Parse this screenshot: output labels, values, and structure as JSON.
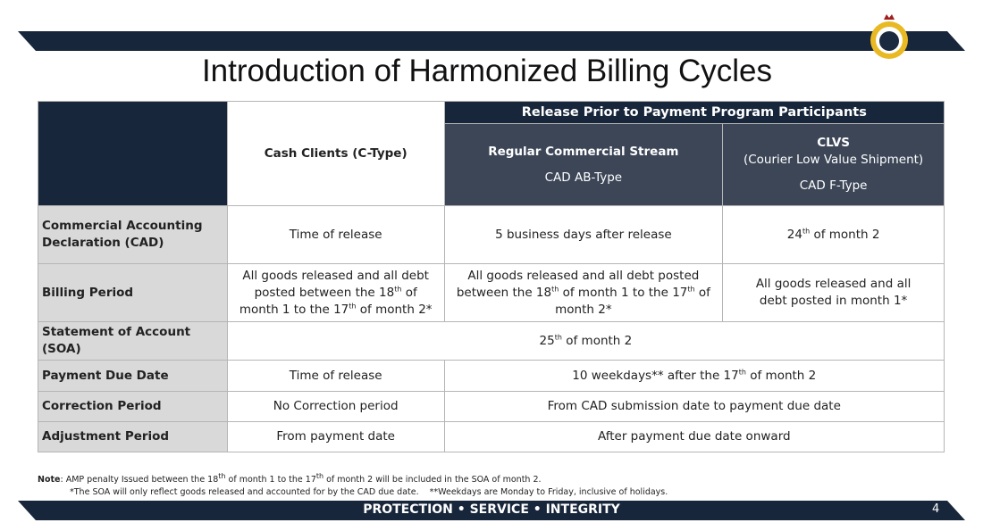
{
  "header": {
    "title": "Introduction of Harmonized Billing Cycles"
  },
  "table": {
    "group_header": "Release Prior to Payment Program Participants",
    "columns": [
      [
        "Cash Clients (C-Type)"
      ],
      [
        "Regular Commercial Stream",
        "CAD AB-Type"
      ],
      [
        "CLVS",
        "(Courier Low Value Shipment)",
        "CAD F-Type"
      ]
    ],
    "rows": [
      {
        "label": "Commercial Accounting Declaration (CAD)",
        "cells": [
          {
            "text": [
              "Time of release"
            ]
          },
          {
            "text": [
              "5 business days after release"
            ]
          },
          {
            "text": [
              "24",
              "th",
              " of month 2"
            ]
          }
        ]
      },
      {
        "label": "Billing Period",
        "cells": [
          {
            "text": [
              "All goods released and all debt posted between the 18",
              "th",
              " of month 1 to the 17",
              "th",
              " of month 2*"
            ]
          },
          {
            "text": [
              "All goods released and all debt posted between the 18",
              "th",
              " of month 1 to the 17",
              "th",
              " of month 2*"
            ]
          },
          {
            "text": [
              "All goods released and all debt posted in month 1*"
            ]
          }
        ]
      },
      {
        "label": "Statement of Account (SOA)",
        "cells": [
          {
            "text": [
              "25",
              "th",
              " of month 2"
            ],
            "span": 3
          }
        ]
      },
      {
        "label": "Payment Due Date",
        "cells": [
          {
            "text": [
              "Time of release"
            ]
          },
          {
            "text": [
              "10 weekdays** after the 17",
              "th",
              " of month 2"
            ],
            "span": 2
          }
        ]
      },
      {
        "label": "Correction Period",
        "cells": [
          {
            "text": [
              "No Correction period"
            ]
          },
          {
            "text": [
              "From CAD submission date to payment due date"
            ],
            "span": 2
          }
        ]
      },
      {
        "label": "Adjustment Period",
        "cells": [
          {
            "text": [
              "From payment date"
            ]
          },
          {
            "text": [
              "After payment due date onward"
            ],
            "span": 2
          }
        ]
      }
    ]
  },
  "notes": {
    "label": "Note",
    "text": [
      ": AMP penalty Issued between the 18",
      "th",
      " of month 1 to the 17",
      "th",
      " of month 2 will be included in the SOA of month 2."
    ],
    "extra": [
      "*The SOA will only reflect goods released and accounted for by the CAD due date.",
      "**Weekdays are Monday to Friday, inclusive of holidays."
    ]
  },
  "footer": {
    "motto": "PROTECTION • SERVICE • INTEGRITY",
    "page": "4"
  }
}
